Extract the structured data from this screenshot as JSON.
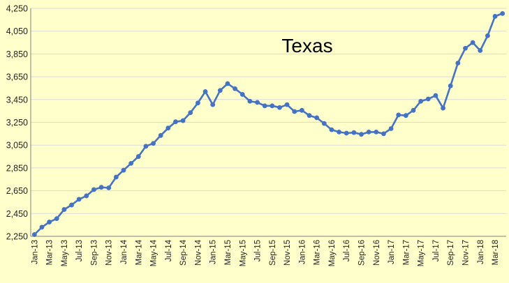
{
  "chart_data": {
    "type": "line",
    "title": "Texas",
    "xlabel": "",
    "ylabel": "",
    "ylim": [
      2250,
      4250
    ],
    "yticks": [
      2250,
      2450,
      2650,
      2850,
      3050,
      3250,
      3450,
      3650,
      3850,
      4050,
      4250
    ],
    "ytick_labels": [
      "2,250",
      "2,450",
      "2,650",
      "2,850",
      "3,050",
      "3,250",
      "3,450",
      "3,650",
      "3,850",
      "4,050",
      "4,250"
    ],
    "grid": true,
    "legend": "none",
    "colors": {
      "background": "#ffffcc",
      "line": "#4472c4",
      "grid": "#d9d9d9",
      "axis": "#808080"
    },
    "categories": [
      "Jan-13",
      "Feb-13",
      "Mar-13",
      "Apr-13",
      "May-13",
      "Jun-13",
      "Jul-13",
      "Aug-13",
      "Sep-13",
      "Oct-13",
      "Nov-13",
      "Dec-13",
      "Jan-14",
      "Feb-14",
      "Mar-14",
      "Apr-14",
      "May-14",
      "Jun-14",
      "Jul-14",
      "Aug-14",
      "Sep-14",
      "Oct-14",
      "Nov-14",
      "Dec-14",
      "Jan-15",
      "Feb-15",
      "Mar-15",
      "Apr-15",
      "May-15",
      "Jun-15",
      "Jul-15",
      "Aug-15",
      "Sep-15",
      "Oct-15",
      "Nov-15",
      "Dec-15",
      "Jan-16",
      "Feb-16",
      "Mar-16",
      "Apr-16",
      "May-16",
      "Jun-16",
      "Jul-16",
      "Aug-16",
      "Sep-16",
      "Oct-16",
      "Nov-16",
      "Dec-16",
      "Jan-17",
      "Feb-17",
      "Mar-17",
      "Apr-17",
      "May-17",
      "Jun-17",
      "Jul-17",
      "Aug-17",
      "Sep-17",
      "Oct-17",
      "Nov-17",
      "Dec-17",
      "Jan-18",
      "Feb-18",
      "Mar-18",
      "Apr-18"
    ],
    "xtick_labels": [
      "Jan-13",
      "Mar-13",
      "May-13",
      "Jul-13",
      "Sep-13",
      "Nov-13",
      "Jan-14",
      "Mar-14",
      "May-14",
      "Jul-14",
      "Sep-14",
      "Nov-14",
      "Jan-15",
      "Mar-15",
      "May-15",
      "Jul-15",
      "Sep-15",
      "Nov-15",
      "Jan-16",
      "Mar-16",
      "May-16",
      "Jul-16",
      "Sep-16",
      "Nov-16",
      "Jan-17",
      "Mar-17",
      "May-17",
      "Jul-17",
      "Sep-17",
      "Nov-17",
      "Jan-18",
      "Mar-18"
    ],
    "series": [
      {
        "values": [
          2265,
          2330,
          2375,
          2405,
          2485,
          2525,
          2575,
          2605,
          2660,
          2680,
          2675,
          2770,
          2830,
          2890,
          2950,
          3040,
          3065,
          3135,
          3200,
          3255,
          3265,
          3335,
          3420,
          3520,
          3405,
          3530,
          3590,
          3545,
          3495,
          3435,
          3425,
          3395,
          3395,
          3380,
          3405,
          3345,
          3355,
          3310,
          3290,
          3240,
          3185,
          3165,
          3155,
          3160,
          3145,
          3165,
          3165,
          3150,
          3195,
          3315,
          3310,
          3355,
          3435,
          3455,
          3485,
          3375,
          3570,
          3770,
          3900,
          3950,
          3880,
          4010,
          4180,
          4205
        ]
      }
    ]
  }
}
